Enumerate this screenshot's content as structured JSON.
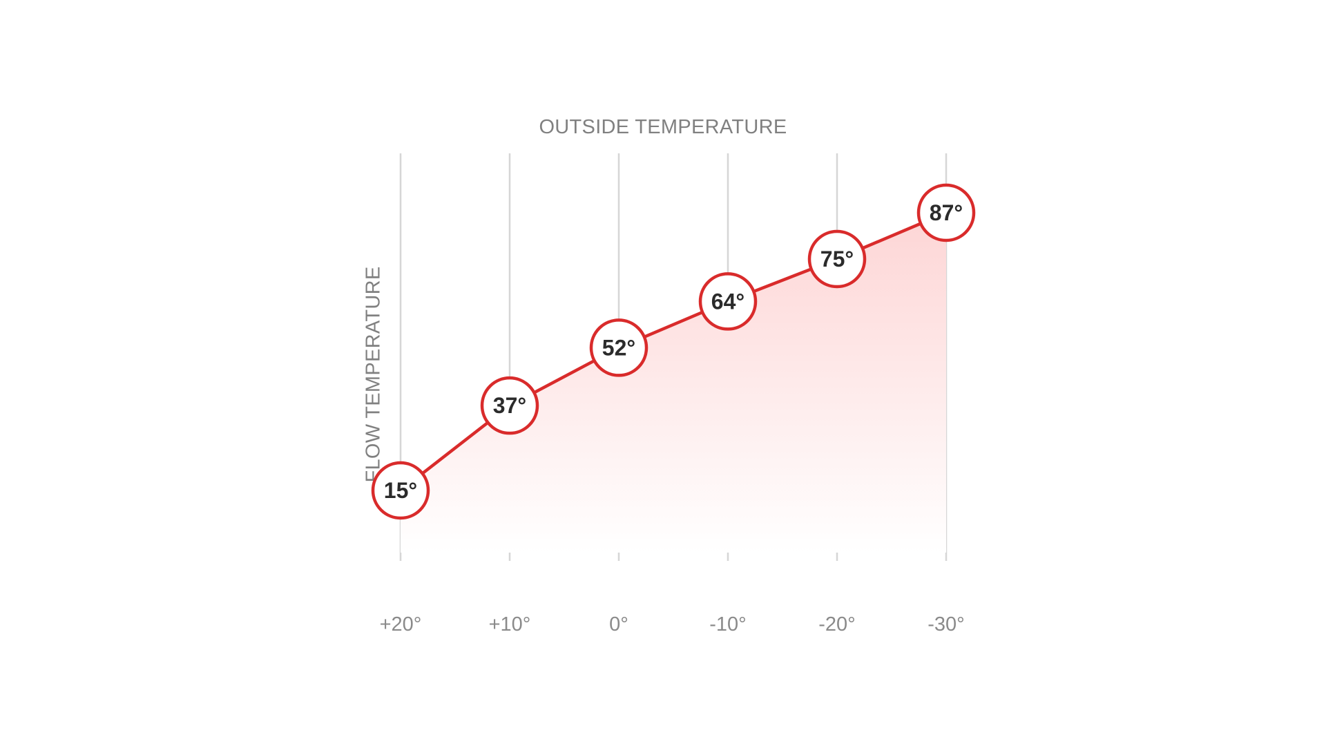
{
  "chart_data": {
    "type": "area",
    "title": "OUTSIDE TEMPERATURE",
    "xlabel": "OUTSIDE TEMPERATURE",
    "ylabel": "FLOW TEMPERATURE",
    "categories": [
      "+20°",
      "+10°",
      "0°",
      "-10°",
      "-20°",
      "-30°"
    ],
    "x": [
      20,
      10,
      0,
      -10,
      -20,
      -30
    ],
    "series": [
      {
        "name": "Flow temperature",
        "values": [
          15,
          37,
          52,
          64,
          75,
          87
        ],
        "labels": [
          "15°",
          "37°",
          "52°",
          "64°",
          "75°",
          "87°"
        ]
      }
    ],
    "grid": {
      "vertical": true,
      "horizontal": false
    },
    "legend": "none",
    "colors": {
      "line": "#d92b2b",
      "fill_top": "#fdd5d5",
      "fill_bottom": "#ffffff",
      "grid": "#d6d6d6",
      "text": "#808080",
      "label": "#2b2b2b"
    }
  }
}
